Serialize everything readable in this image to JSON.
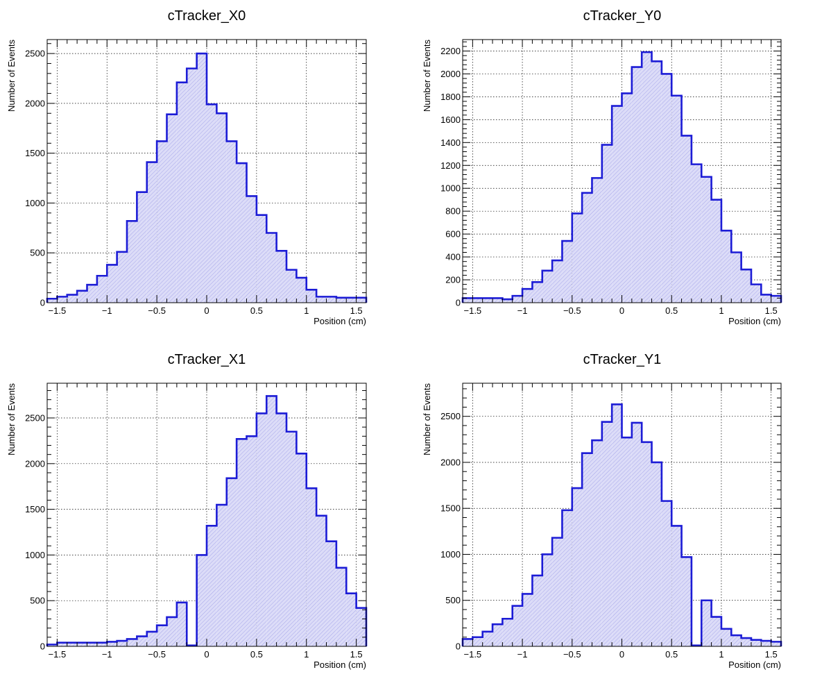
{
  "colors": {
    "line": "#1c1cd6",
    "fill": "#dcdcf8",
    "grid": "#000000",
    "frame": "#000000"
  },
  "chart_data": [
    {
      "type": "bar",
      "title": "cTracker_X0",
      "xlabel": "Position (cm)",
      "ylabel": "Number of Events",
      "xlim": [
        -1.6,
        1.6
      ],
      "ylim": [
        0,
        2640
      ],
      "grid": true,
      "x_ticks": [
        {
          "v": -1.5,
          "label": "−1.5"
        },
        {
          "v": -1,
          "label": "−1"
        },
        {
          "v": -0.5,
          "label": "−0.5"
        },
        {
          "v": 0,
          "label": "0"
        },
        {
          "v": 0.5,
          "label": "0.5"
        },
        {
          "v": 1,
          "label": "1"
        },
        {
          "v": 1.5,
          "label": "1.5"
        }
      ],
      "y_ticks": [
        {
          "v": 0,
          "label": "0"
        },
        {
          "v": 500,
          "label": "500"
        },
        {
          "v": 1000,
          "label": "1000"
        },
        {
          "v": 1500,
          "label": "1500"
        },
        {
          "v": 2000,
          "label": "2000"
        },
        {
          "v": 2500,
          "label": "2500"
        }
      ],
      "bin_edges_start": -1.6,
      "bin_width": 0.1,
      "series": [
        {
          "values": [
            40,
            60,
            80,
            120,
            180,
            270,
            380,
            510,
            820,
            1110,
            1410,
            1620,
            1890,
            2210,
            2350,
            2500,
            1990,
            1900,
            1620,
            1400,
            1070,
            880,
            700,
            520,
            330,
            250,
            130,
            60,
            60,
            50,
            50,
            50
          ]
        }
      ]
    },
    {
      "type": "bar",
      "title": "cTracker_Y0",
      "xlabel": "Position (cm)",
      "ylabel": "Number of Events",
      "xlim": [
        -1.6,
        1.6
      ],
      "ylim": [
        0,
        2300
      ],
      "grid": true,
      "x_ticks": [
        {
          "v": -1.5,
          "label": "−1.5"
        },
        {
          "v": -1,
          "label": "−1"
        },
        {
          "v": -0.5,
          "label": "−0.5"
        },
        {
          "v": 0,
          "label": "0"
        },
        {
          "v": 0.5,
          "label": "0.5"
        },
        {
          "v": 1,
          "label": "1"
        },
        {
          "v": 1.5,
          "label": "1.5"
        }
      ],
      "y_ticks": [
        {
          "v": 0,
          "label": "0"
        },
        {
          "v": 200,
          "label": "200"
        },
        {
          "v": 400,
          "label": "400"
        },
        {
          "v": 600,
          "label": "600"
        },
        {
          "v": 800,
          "label": "800"
        },
        {
          "v": 1000,
          "label": "1000"
        },
        {
          "v": 1200,
          "label": "1200"
        },
        {
          "v": 1400,
          "label": "1400"
        },
        {
          "v": 1600,
          "label": "1600"
        },
        {
          "v": 1800,
          "label": "1800"
        },
        {
          "v": 2000,
          "label": "2000"
        },
        {
          "v": 2200,
          "label": "2200"
        }
      ],
      "bin_edges_start": -1.6,
      "bin_width": 0.1,
      "series": [
        {
          "values": [
            40,
            40,
            40,
            40,
            30,
            60,
            120,
            180,
            280,
            370,
            540,
            780,
            960,
            1090,
            1380,
            1720,
            1830,
            2060,
            2190,
            2110,
            2000,
            1810,
            1460,
            1210,
            1100,
            900,
            630,
            440,
            290,
            160,
            70,
            60
          ]
        }
      ]
    },
    {
      "type": "bar",
      "title": "cTracker_X1",
      "xlabel": "Position (cm)",
      "ylabel": "Number of Events",
      "xlim": [
        -1.6,
        1.6
      ],
      "ylim": [
        0,
        2880
      ],
      "grid": true,
      "x_ticks": [
        {
          "v": -1.5,
          "label": "−1.5"
        },
        {
          "v": -1,
          "label": "−1"
        },
        {
          "v": -0.5,
          "label": "−0.5"
        },
        {
          "v": 0,
          "label": "0"
        },
        {
          "v": 0.5,
          "label": "0.5"
        },
        {
          "v": 1,
          "label": "1"
        },
        {
          "v": 1.5,
          "label": "1.5"
        }
      ],
      "y_ticks": [
        {
          "v": 0,
          "label": "0"
        },
        {
          "v": 500,
          "label": "500"
        },
        {
          "v": 1000,
          "label": "1000"
        },
        {
          "v": 1500,
          "label": "1500"
        },
        {
          "v": 2000,
          "label": "2000"
        },
        {
          "v": 2500,
          "label": "2500"
        }
      ],
      "bin_edges_start": -1.6,
      "bin_width": 0.1,
      "series": [
        {
          "values": [
            20,
            40,
            40,
            40,
            40,
            40,
            50,
            60,
            80,
            110,
            160,
            230,
            320,
            480,
            10,
            1000,
            1320,
            1550,
            1840,
            2270,
            2300,
            2550,
            2740,
            2550,
            2350,
            2110,
            1730,
            1430,
            1150,
            860,
            580,
            420
          ]
        }
      ]
    },
    {
      "type": "bar",
      "title": "cTracker_Y1",
      "xlabel": "Position (cm)",
      "ylabel": "Number of Events",
      "xlim": [
        -1.6,
        1.6
      ],
      "ylim": [
        0,
        2860
      ],
      "grid": true,
      "x_ticks": [
        {
          "v": -1.5,
          "label": "−1.5"
        },
        {
          "v": -1,
          "label": "−1"
        },
        {
          "v": -0.5,
          "label": "−0.5"
        },
        {
          "v": 0,
          "label": "0"
        },
        {
          "v": 0.5,
          "label": "0.5"
        },
        {
          "v": 1,
          "label": "1"
        },
        {
          "v": 1.5,
          "label": "1.5"
        }
      ],
      "y_ticks": [
        {
          "v": 0,
          "label": "0"
        },
        {
          "v": 500,
          "label": "500"
        },
        {
          "v": 1000,
          "label": "1000"
        },
        {
          "v": 1500,
          "label": "1500"
        },
        {
          "v": 2000,
          "label": "2000"
        },
        {
          "v": 2500,
          "label": "2500"
        }
      ],
      "bin_edges_start": -1.6,
      "bin_width": 0.1,
      "series": [
        {
          "values": [
            80,
            100,
            160,
            240,
            300,
            440,
            570,
            770,
            1000,
            1180,
            1480,
            1720,
            2100,
            2240,
            2440,
            2630,
            2270,
            2430,
            2220,
            2000,
            1580,
            1310,
            970,
            10,
            500,
            320,
            190,
            120,
            90,
            70,
            60,
            50
          ]
        }
      ]
    }
  ]
}
